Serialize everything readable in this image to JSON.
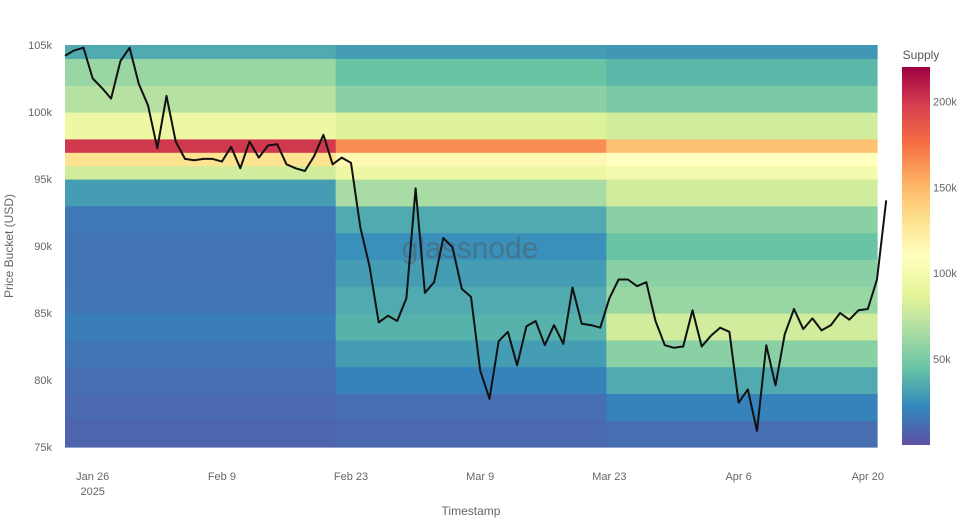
{
  "chart_data": {
    "type": "heatmap",
    "title": "",
    "xlabel": "Timestamp",
    "ylabel": "Price Bucket (USD)",
    "watermark": "glassnode",
    "x_range": [
      "2025-01-23",
      "2025-04-21"
    ],
    "x_ticks": [
      {
        "date": "2025-01-26",
        "label": "Jan 26",
        "sublabel": "2025"
      },
      {
        "date": "2025-02-09",
        "label": "Feb 9"
      },
      {
        "date": "2025-02-23",
        "label": "Feb 23"
      },
      {
        "date": "2025-03-09",
        "label": "Mar 9"
      },
      {
        "date": "2025-03-23",
        "label": "Mar 23"
      },
      {
        "date": "2025-04-06",
        "label": "Apr 6"
      },
      {
        "date": "2025-04-20",
        "label": "Apr 20"
      }
    ],
    "y_range": [
      75000,
      105000
    ],
    "y_ticks": [
      {
        "value": 75000,
        "label": "75k"
      },
      {
        "value": 80000,
        "label": "80k"
      },
      {
        "value": 85000,
        "label": "85k"
      },
      {
        "value": 90000,
        "label": "90k"
      },
      {
        "value": 95000,
        "label": "95k"
      },
      {
        "value": 100000,
        "label": "100k"
      },
      {
        "value": 105000,
        "label": "105k"
      }
    ],
    "colorbar": {
      "title": "Supply",
      "range": [
        0,
        220000
      ],
      "ticks": [
        {
          "value": 50000,
          "label": "50k"
        },
        {
          "value": 100000,
          "label": "100k"
        },
        {
          "value": 150000,
          "label": "150k"
        },
        {
          "value": 200000,
          "label": "200k"
        }
      ],
      "colorscale": [
        "#5e4fa2",
        "#3288bd",
        "#66c2a5",
        "#abdda4",
        "#e6f598",
        "#ffffbf",
        "#fee08b",
        "#fdae61",
        "#f46d43",
        "#d53e4f",
        "#9e0142"
      ]
    },
    "heatmap_bands": [
      {
        "y_low": 75000,
        "y_high": 77000,
        "supply": [
          8000,
          10000,
          12000
        ]
      },
      {
        "y_low": 77000,
        "y_high": 79000,
        "supply": [
          10000,
          12000,
          20000
        ]
      },
      {
        "y_low": 79000,
        "y_high": 81000,
        "supply": [
          12000,
          20000,
          35000
        ]
      },
      {
        "y_low": 81000,
        "y_high": 83000,
        "supply": [
          15000,
          30000,
          55000
        ]
      },
      {
        "y_low": 83000,
        "y_high": 85000,
        "supply": [
          18000,
          38000,
          80000
        ]
      },
      {
        "y_low": 85000,
        "y_high": 87000,
        "supply": [
          15000,
          35000,
          60000
        ]
      },
      {
        "y_low": 87000,
        "y_high": 89000,
        "supply": [
          14000,
          30000,
          55000
        ]
      },
      {
        "y_low": 89000,
        "y_high": 91000,
        "supply": [
          14000,
          25000,
          45000
        ]
      },
      {
        "y_low": 91000,
        "y_high": 93000,
        "supply": [
          16000,
          35000,
          55000
        ]
      },
      {
        "y_low": 93000,
        "y_high": 95000,
        "supply": [
          30000,
          65000,
          80000
        ]
      },
      {
        "y_low": 95000,
        "y_high": 96000,
        "supply": [
          80000,
          95000,
          100000
        ]
      },
      {
        "y_low": 96000,
        "y_high": 97000,
        "supply": [
          130000,
          115000,
          110000
        ]
      },
      {
        "y_low": 97000,
        "y_high": 98000,
        "supply": [
          200000,
          165000,
          145000
        ]
      },
      {
        "y_low": 98000,
        "y_high": 100000,
        "supply": [
          95000,
          85000,
          80000
        ]
      },
      {
        "y_low": 100000,
        "y_high": 102000,
        "supply": [
          70000,
          55000,
          50000
        ]
      },
      {
        "y_low": 102000,
        "y_high": 104000,
        "supply": [
          60000,
          45000,
          40000
        ]
      },
      {
        "y_low": 104000,
        "y_high": 105000,
        "supply": [
          35000,
          30000,
          28000
        ]
      }
    ],
    "series": [
      {
        "points": [
          [
            "2025-01-23",
            104200
          ],
          [
            "2025-01-24",
            104600
          ],
          [
            "2025-01-25",
            104800
          ],
          [
            "2025-01-26",
            102500
          ],
          [
            "2025-01-27",
            101800
          ],
          [
            "2025-01-28",
            101000
          ],
          [
            "2025-01-29",
            103800
          ],
          [
            "2025-01-30",
            104800
          ],
          [
            "2025-01-31",
            102100
          ],
          [
            "2025-02-01",
            100500
          ],
          [
            "2025-02-02",
            97300
          ],
          [
            "2025-02-03",
            101200
          ],
          [
            "2025-02-04",
            97800
          ],
          [
            "2025-02-05",
            96500
          ],
          [
            "2025-02-06",
            96400
          ],
          [
            "2025-02-07",
            96500
          ],
          [
            "2025-02-08",
            96500
          ],
          [
            "2025-02-09",
            96300
          ],
          [
            "2025-02-10",
            97400
          ],
          [
            "2025-02-11",
            95800
          ],
          [
            "2025-02-12",
            97800
          ],
          [
            "2025-02-13",
            96600
          ],
          [
            "2025-02-14",
            97500
          ],
          [
            "2025-02-15",
            97600
          ],
          [
            "2025-02-16",
            96100
          ],
          [
            "2025-02-17",
            95800
          ],
          [
            "2025-02-18",
            95600
          ],
          [
            "2025-02-19",
            96700
          ],
          [
            "2025-02-20",
            98300
          ],
          [
            "2025-02-21",
            96100
          ],
          [
            "2025-02-22",
            96600
          ],
          [
            "2025-02-23",
            96200
          ],
          [
            "2025-02-24",
            91400
          ],
          [
            "2025-02-25",
            88500
          ],
          [
            "2025-02-26",
            84300
          ],
          [
            "2025-02-27",
            84800
          ],
          [
            "2025-02-28",
            84400
          ],
          [
            "2025-03-01",
            86100
          ],
          [
            "2025-03-02",
            94300
          ],
          [
            "2025-03-03",
            86500
          ],
          [
            "2025-03-04",
            87300
          ],
          [
            "2025-03-05",
            90600
          ],
          [
            "2025-03-06",
            89900
          ],
          [
            "2025-03-07",
            86800
          ],
          [
            "2025-03-08",
            86200
          ],
          [
            "2025-03-09",
            80700
          ],
          [
            "2025-03-10",
            78600
          ],
          [
            "2025-03-11",
            82900
          ],
          [
            "2025-03-12",
            83600
          ],
          [
            "2025-03-13",
            81100
          ],
          [
            "2025-03-14",
            84000
          ],
          [
            "2025-03-15",
            84400
          ],
          [
            "2025-03-16",
            82600
          ],
          [
            "2025-03-17",
            84100
          ],
          [
            "2025-03-18",
            82700
          ],
          [
            "2025-03-19",
            86900
          ],
          [
            "2025-03-20",
            84200
          ],
          [
            "2025-03-21",
            84100
          ],
          [
            "2025-03-22",
            83900
          ],
          [
            "2025-03-23",
            86100
          ],
          [
            "2025-03-24",
            87500
          ],
          [
            "2025-03-25",
            87500
          ],
          [
            "2025-03-26",
            87000
          ],
          [
            "2025-03-27",
            87300
          ],
          [
            "2025-03-28",
            84400
          ],
          [
            "2025-03-29",
            82600
          ],
          [
            "2025-03-30",
            82400
          ],
          [
            "2025-03-31",
            82500
          ],
          [
            "2025-04-01",
            85200
          ],
          [
            "2025-04-02",
            82500
          ],
          [
            "2025-04-03",
            83300
          ],
          [
            "2025-04-04",
            83900
          ],
          [
            "2025-04-05",
            83600
          ],
          [
            "2025-04-06",
            78300
          ],
          [
            "2025-04-07",
            79300
          ],
          [
            "2025-04-08",
            76200
          ],
          [
            "2025-04-09",
            82600
          ],
          [
            "2025-04-10",
            79600
          ],
          [
            "2025-04-11",
            83400
          ],
          [
            "2025-04-12",
            85300
          ],
          [
            "2025-04-13",
            83800
          ],
          [
            "2025-04-14",
            84600
          ],
          [
            "2025-04-15",
            83700
          ],
          [
            "2025-04-16",
            84100
          ],
          [
            "2025-04-17",
            85000
          ],
          [
            "2025-04-18",
            84500
          ],
          [
            "2025-04-19",
            85200
          ],
          [
            "2025-04-20",
            85300
          ],
          [
            "2025-04-21",
            87500
          ],
          [
            "2025-04-22",
            93400
          ]
        ],
        "color": "#111111"
      }
    ],
    "grid": false,
    "legend": "colorbar right"
  }
}
